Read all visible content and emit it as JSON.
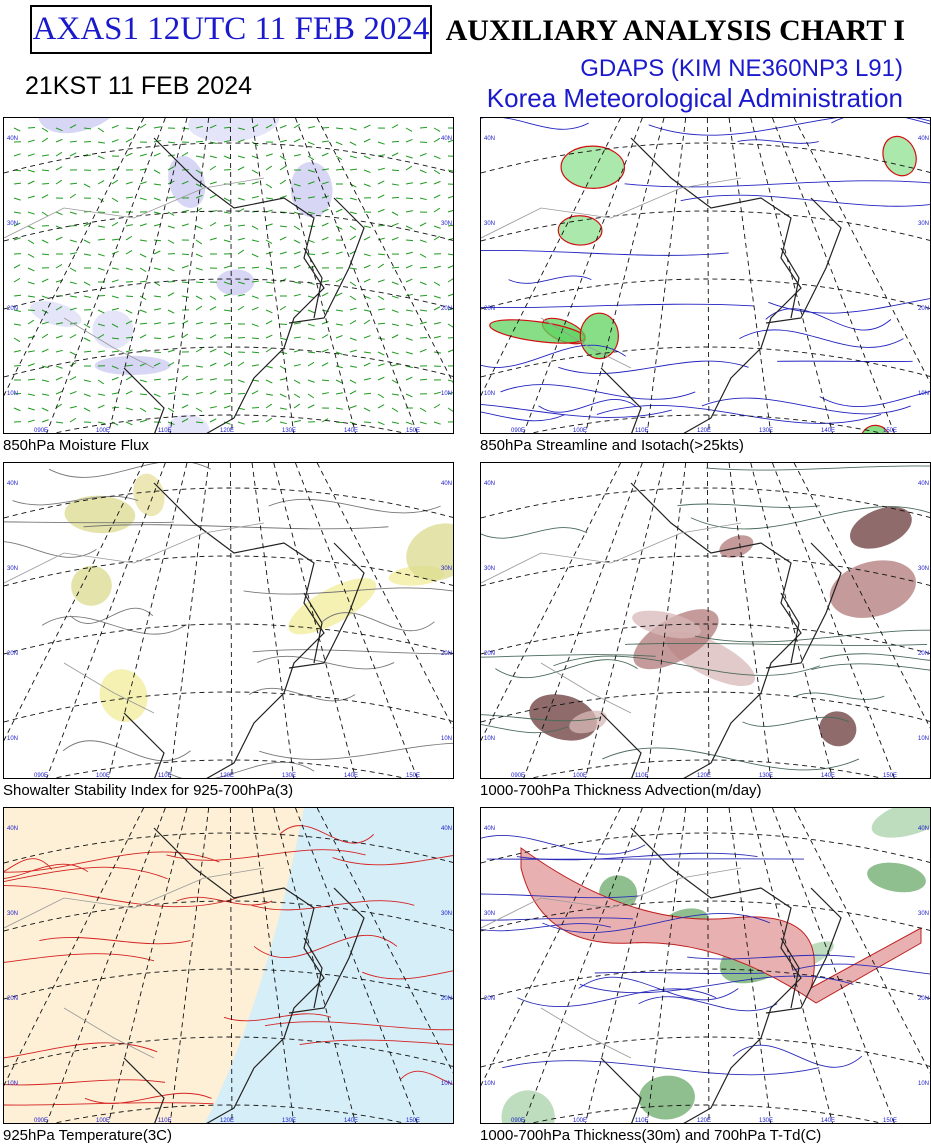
{
  "header": {
    "product_id": "AXAS1  12UTC 11 FEB 2024",
    "valid_time": "21KST 11 FEB 2024",
    "title": "AUXILIARY ANALYSIS CHART  I",
    "model": "GDAPS (KIM NE360NP3 L91)",
    "agency": "Korea Meteorological Administration"
  },
  "map_labels": {
    "latitudes": [
      "40N",
      "30N",
      "20N",
      "10N"
    ],
    "longitudes": [
      "090E",
      "100E",
      "110E",
      "120E",
      "130E",
      "140E",
      "150E"
    ]
  },
  "panels": [
    {
      "caption": "850hPa Moisture Flux"
    },
    {
      "caption": "850hPa Streamline and Isotach(>25kts)"
    },
    {
      "caption": "Showalter Stability Index for 925-700hPa(3)"
    },
    {
      "caption": "1000-700hPa Thickness Advection(m/day)"
    },
    {
      "caption": "925hPa Temperature(3C)"
    },
    {
      "caption": "1000-700hPa Thickness(30m) and 700hPa T-Td(C)"
    }
  ]
}
